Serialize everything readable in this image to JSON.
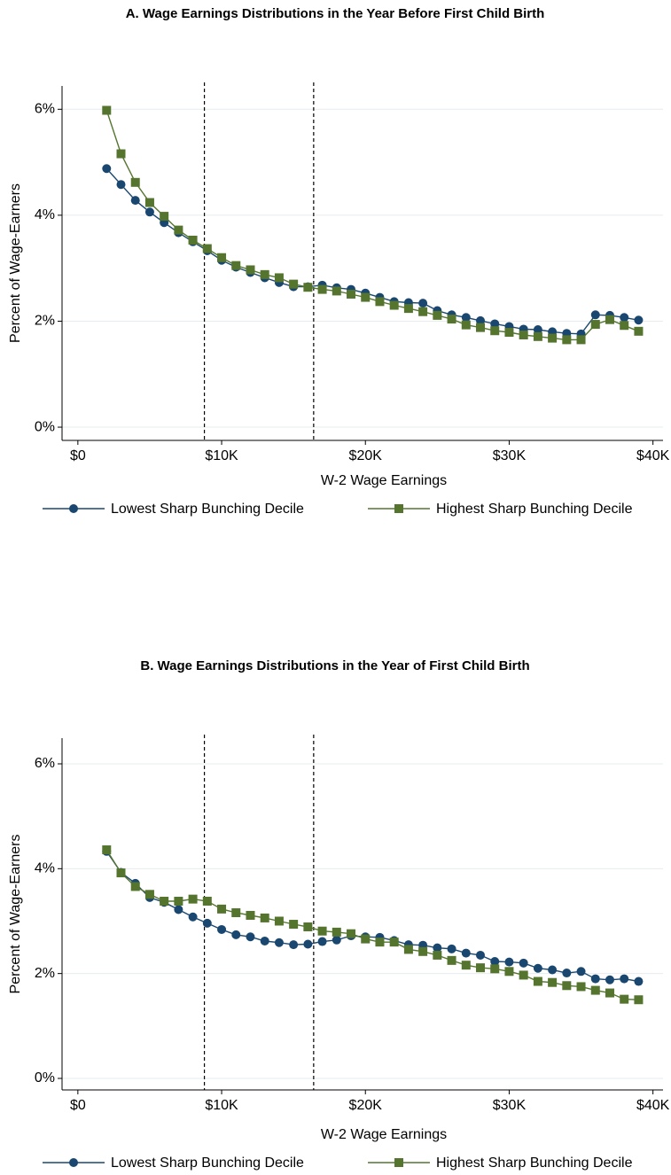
{
  "chart_data": [
    {
      "type": "line",
      "title": "A. Wage Earnings Distributions in the Year Before First Child Birth",
      "xlabel": "W-2 Wage Earnings",
      "ylabel": "Percent of Wage-Earners",
      "x": [
        2000,
        3000,
        4000,
        5000,
        6000,
        7000,
        8000,
        9000,
        10000,
        11000,
        12000,
        13000,
        14000,
        15000,
        16000,
        17000,
        18000,
        19000,
        20000,
        21000,
        22000,
        23000,
        24000,
        25000,
        26000,
        27000,
        28000,
        29000,
        30000,
        31000,
        32000,
        33000,
        34000,
        35000,
        36000,
        37000,
        38000,
        39000
      ],
      "series": [
        {
          "name": "Lowest Sharp Bunching Decile",
          "color": "#1a476f",
          "marker": "circle",
          "values": [
            4.88,
            4.58,
            4.28,
            4.06,
            3.86,
            3.67,
            3.5,
            3.33,
            3.15,
            3.02,
            2.92,
            2.82,
            2.73,
            2.65,
            2.65,
            2.68,
            2.63,
            2.6,
            2.53,
            2.45,
            2.37,
            2.35,
            2.34,
            2.2,
            2.12,
            2.07,
            2.01,
            1.95,
            1.9,
            1.85,
            1.84,
            1.8,
            1.77,
            1.76,
            2.12,
            2.11,
            2.07,
            2.02
          ]
        },
        {
          "name": "Highest Sharp Bunching Decile",
          "color": "#55752f",
          "marker": "square",
          "values": [
            5.98,
            5.16,
            4.62,
            4.24,
            3.98,
            3.72,
            3.53,
            3.37,
            3.2,
            3.05,
            2.97,
            2.88,
            2.82,
            2.7,
            2.64,
            2.6,
            2.57,
            2.51,
            2.45,
            2.37,
            2.3,
            2.24,
            2.18,
            2.11,
            2.04,
            1.93,
            1.88,
            1.82,
            1.79,
            1.74,
            1.71,
            1.68,
            1.65,
            1.65,
            1.94,
            2.03,
            1.92,
            1.81
          ]
        }
      ],
      "vlines": [
        8800,
        16400
      ],
      "xlim": [
        -1100,
        40700
      ],
      "xticks": [
        {
          "value": 0,
          "label": "$0"
        },
        {
          "value": 10000,
          "label": "$10K"
        },
        {
          "value": 20000,
          "label": "$20K"
        },
        {
          "value": 30000,
          "label": "$30K"
        },
        {
          "value": 40000,
          "label": "$40K"
        }
      ],
      "ylim": [
        -0.25,
        6.44
      ],
      "yticks": [
        {
          "value": 0,
          "label": "0%"
        },
        {
          "value": 2,
          "label": "2%"
        },
        {
          "value": 4,
          "label": "4%"
        },
        {
          "value": 6,
          "label": "6%"
        }
      ],
      "grid": true,
      "legend": "bottom"
    },
    {
      "type": "line",
      "title": "B. Wage Earnings Distributions in the Year of First Child Birth",
      "xlabel": "W-2 Wage Earnings",
      "ylabel": "Percent of Wage-Earners",
      "x": [
        2000,
        3000,
        4000,
        5000,
        6000,
        7000,
        8000,
        9000,
        10000,
        11000,
        12000,
        13000,
        14000,
        15000,
        16000,
        17000,
        18000,
        19000,
        20000,
        21000,
        22000,
        23000,
        24000,
        25000,
        26000,
        27000,
        28000,
        29000,
        30000,
        31000,
        32000,
        33000,
        34000,
        35000,
        36000,
        37000,
        38000,
        39000
      ],
      "series": [
        {
          "name": "Lowest Sharp Bunching Decile",
          "color": "#1a476f",
          "marker": "circle",
          "values": [
            4.33,
            3.93,
            3.72,
            3.45,
            3.36,
            3.22,
            3.08,
            2.96,
            2.84,
            2.74,
            2.7,
            2.62,
            2.59,
            2.55,
            2.56,
            2.61,
            2.64,
            2.72,
            2.7,
            2.69,
            2.63,
            2.55,
            2.54,
            2.49,
            2.47,
            2.39,
            2.35,
            2.23,
            2.22,
            2.2,
            2.1,
            2.07,
            2.01,
            2.04,
            1.9,
            1.88,
            1.9,
            1.85
          ]
        },
        {
          "name": "Highest Sharp Bunching Decile",
          "color": "#55752f",
          "marker": "square",
          "values": [
            4.36,
            3.92,
            3.66,
            3.51,
            3.38,
            3.38,
            3.42,
            3.38,
            3.23,
            3.16,
            3.11,
            3.06,
            3.0,
            2.94,
            2.89,
            2.81,
            2.79,
            2.76,
            2.66,
            2.6,
            2.6,
            2.46,
            2.42,
            2.35,
            2.25,
            2.16,
            2.11,
            2.09,
            2.04,
            1.97,
            1.85,
            1.83,
            1.77,
            1.75,
            1.68,
            1.63,
            1.51,
            1.5
          ]
        }
      ],
      "vlines": [
        8800,
        16400
      ],
      "xlim": [
        -1100,
        40700
      ],
      "xticks": [
        {
          "value": 0,
          "label": "$0"
        },
        {
          "value": 10000,
          "label": "$10K"
        },
        {
          "value": 20000,
          "label": "$20K"
        },
        {
          "value": 30000,
          "label": "$30K"
        },
        {
          "value": 40000,
          "label": "$40K"
        }
      ],
      "ylim": [
        -0.22,
        6.49
      ],
      "yticks": [
        {
          "value": 0,
          "label": "0%"
        },
        {
          "value": 2,
          "label": "2%"
        },
        {
          "value": 4,
          "label": "4%"
        },
        {
          "value": 6,
          "label": "6%"
        }
      ],
      "grid": true,
      "legend": "bottom"
    }
  ]
}
